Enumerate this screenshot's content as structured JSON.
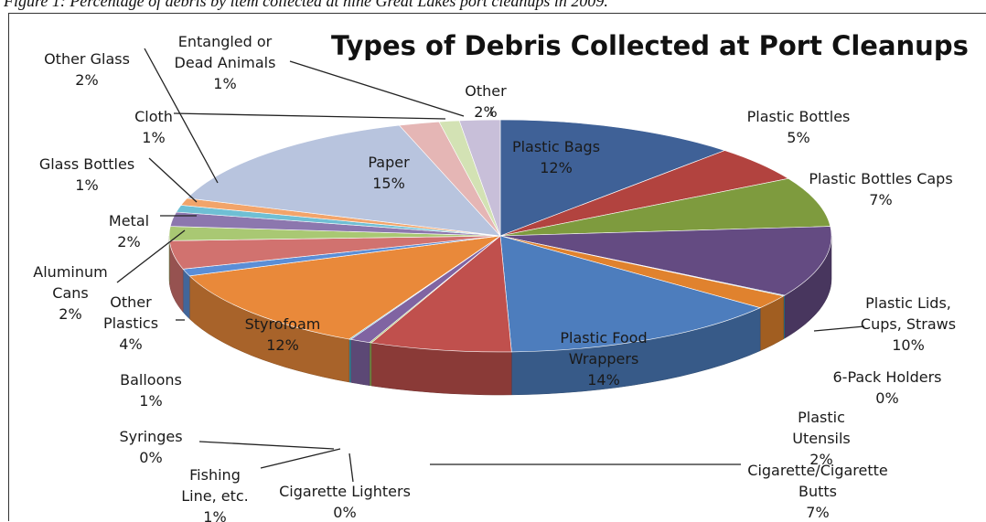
{
  "caption": "Figure 1: Percentage of debris by item collected at nine Great Lakes port cleanups in 2009.",
  "chart_data": {
    "type": "pie",
    "title": "Types of Debris Collected at Port Cleanups",
    "slices": [
      {
        "name": "Plastic Bags",
        "value": 12,
        "label": "12%",
        "color": "#3f6197"
      },
      {
        "name": "Plastic Bottles",
        "value": 5,
        "label": "5%",
        "color": "#b2433f"
      },
      {
        "name": "Plastic Bottles Caps",
        "value": 7,
        "label": "7%",
        "color": "#7e9b3e"
      },
      {
        "name": "Plastic Lids, Cups, Straws",
        "value": 10,
        "label": "10%",
        "color": "#644b82"
      },
      {
        "name": "6-Pack Holders",
        "value": 0,
        "label": "0%",
        "color": "#3c99b0"
      },
      {
        "name": "Plastic Utensils",
        "value": 2,
        "label": "2%",
        "color": "#e0822e"
      },
      {
        "name": "Plastic Food Wrappers",
        "value": 14,
        "label": "14%",
        "color": "#4d7dbd"
      },
      {
        "name": "Cigarette/Cigarette Butts",
        "value": 7,
        "label": "7%",
        "color": "#c0504d"
      },
      {
        "name": "Cigarette Lighters",
        "value": 0,
        "label": "0%",
        "color": "#9bbb59"
      },
      {
        "name": "Fishing Line, etc.",
        "value": 1,
        "label": "1%",
        "color": "#8064a2"
      },
      {
        "name": "Syringes",
        "value": 0,
        "label": "0%",
        "color": "#4bacc6"
      },
      {
        "name": "Styrofoam",
        "value": 12,
        "label": "12%",
        "color": "#e9893a"
      },
      {
        "name": "Balloons",
        "value": 1,
        "label": "1%",
        "color": "#5b8ed6"
      },
      {
        "name": "Other Plastics",
        "value": 4,
        "label": "4%",
        "color": "#d1726f"
      },
      {
        "name": "Aluminum Cans",
        "value": 2,
        "label": "2%",
        "color": "#a9c873"
      },
      {
        "name": "Metal",
        "value": 2,
        "label": "2%",
        "color": "#8c77ae"
      },
      {
        "name": "Glass Bottles",
        "value": 1,
        "label": "1%",
        "color": "#6fbfd4"
      },
      {
        "name": "Cloth",
        "value": 1,
        "label": "1%",
        "color": "#f2a46a"
      },
      {
        "name": "Paper",
        "value": 15,
        "label": "15%",
        "color": "#b8c4de"
      },
      {
        "name": "Other Glass",
        "value": 2,
        "label": "2%",
        "color": "#e5b6b5"
      },
      {
        "name": "Entangled or Dead Animals",
        "value": 1,
        "label": "1%",
        "color": "#d3e2b4"
      },
      {
        "name": "Other",
        "value": 2,
        "label": "2%",
        "color": "#c8bfd9"
      }
    ]
  }
}
